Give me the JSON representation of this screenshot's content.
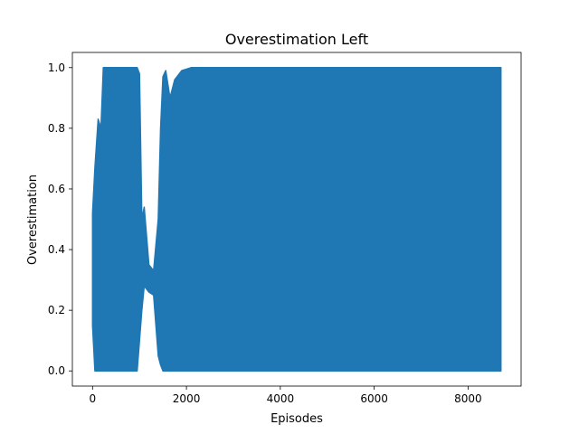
{
  "chart_data": {
    "type": "line",
    "title": "Overestimation Left",
    "xlabel": "Episodes",
    "ylabel": "Overestimation",
    "xlim": [
      -430,
      9130
    ],
    "ylim": [
      -0.05,
      1.05
    ],
    "x_ticks": [
      0,
      2000,
      4000,
      6000,
      8000
    ],
    "y_ticks": [
      0.0,
      0.2,
      0.4,
      0.6,
      0.8,
      1.0
    ],
    "x_tick_labels": [
      "0",
      "2000",
      "4000",
      "6000",
      "8000"
    ],
    "y_tick_labels": [
      "0.0",
      "0.2",
      "0.4",
      "0.6",
      "0.8",
      "1.0"
    ],
    "grid": false,
    "series": [
      {
        "color": "#1f77b4",
        "x_range": [
          0,
          8700
        ],
        "envelope": [
          {
            "x": 0,
            "min": 0.15,
            "max": 0.52
          },
          {
            "x": 50,
            "min": 0.0,
            "max": 0.67
          },
          {
            "x": 120,
            "min": 0.0,
            "max": 0.83
          },
          {
            "x": 180,
            "min": 0.0,
            "max": 0.8
          },
          {
            "x": 230,
            "min": 0.0,
            "max": 1.0
          },
          {
            "x": 400,
            "min": 0.0,
            "max": 1.0
          },
          {
            "x": 700,
            "min": 0.0,
            "max": 1.0
          },
          {
            "x": 950,
            "min": 0.0,
            "max": 1.0
          },
          {
            "x": 1000,
            "min": 0.1,
            "max": 0.98
          },
          {
            "x": 1050,
            "min": 0.2,
            "max": 0.5
          },
          {
            "x": 1100,
            "min": 0.28,
            "max": 0.54
          },
          {
            "x": 1200,
            "min": 0.26,
            "max": 0.35
          },
          {
            "x": 1300,
            "min": 0.25,
            "max": 0.33
          },
          {
            "x": 1400,
            "min": 0.05,
            "max": 0.5
          },
          {
            "x": 1450,
            "min": 0.02,
            "max": 0.8
          },
          {
            "x": 1500,
            "min": 0.0,
            "max": 0.97
          },
          {
            "x": 1560,
            "min": 0.0,
            "max": 0.99
          },
          {
            "x": 1650,
            "min": 0.0,
            "max": 0.9
          },
          {
            "x": 1750,
            "min": 0.0,
            "max": 0.96
          },
          {
            "x": 1900,
            "min": 0.0,
            "max": 0.99
          },
          {
            "x": 2100,
            "min": 0.0,
            "max": 1.0
          },
          {
            "x": 8700,
            "min": 0.0,
            "max": 1.0
          }
        ]
      }
    ]
  }
}
